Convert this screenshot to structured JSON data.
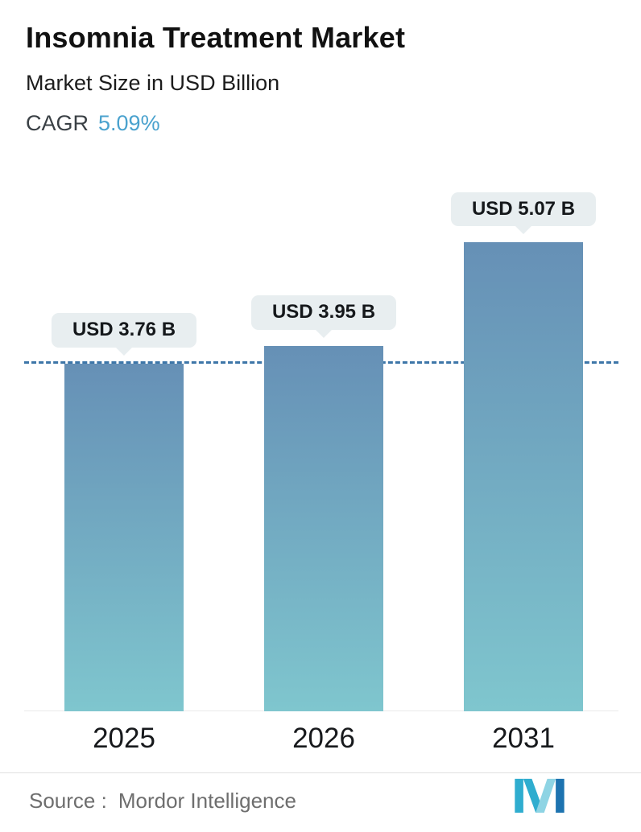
{
  "header": {
    "title": "Insomnia Treatment Market",
    "subtitle": "Market Size in USD Billion",
    "cagr_label": "CAGR",
    "cagr_value": "5.09%"
  },
  "chart_data": {
    "type": "bar",
    "title": "Insomnia Treatment Market",
    "subtitle": "Market Size in USD Billion",
    "cagr": "5.09%",
    "categories": [
      "2025",
      "2026",
      "2031"
    ],
    "values": [
      3.76,
      3.95,
      5.07
    ],
    "value_labels": [
      "USD 3.76 B",
      "USD 3.95 B",
      "USD 5.07 B"
    ],
    "reference_line": {
      "value": 3.76,
      "style": "dashed"
    },
    "ylim": [
      0,
      5.5
    ],
    "xlabel": "",
    "ylabel": "Market Size in USD Billion",
    "grid": false,
    "legend": false
  },
  "footer": {
    "source_label": "Source :",
    "source_value": "Mordor Intelligence",
    "logo": "mordor-intelligence-logo"
  },
  "colors": {
    "bar_gradient_top": "#6690b6",
    "bar_gradient_bottom": "#7fc6ce",
    "cagr_accent": "#4aa2ce",
    "reference_line": "#3d76a8",
    "label_bubble_bg": "#e8eef0",
    "text_primary": "#111111",
    "text_muted": "#6e6e6e",
    "logo_teal": "#2fadcf",
    "logo_light": "#8ed4e4",
    "logo_blue": "#1d73b0"
  }
}
